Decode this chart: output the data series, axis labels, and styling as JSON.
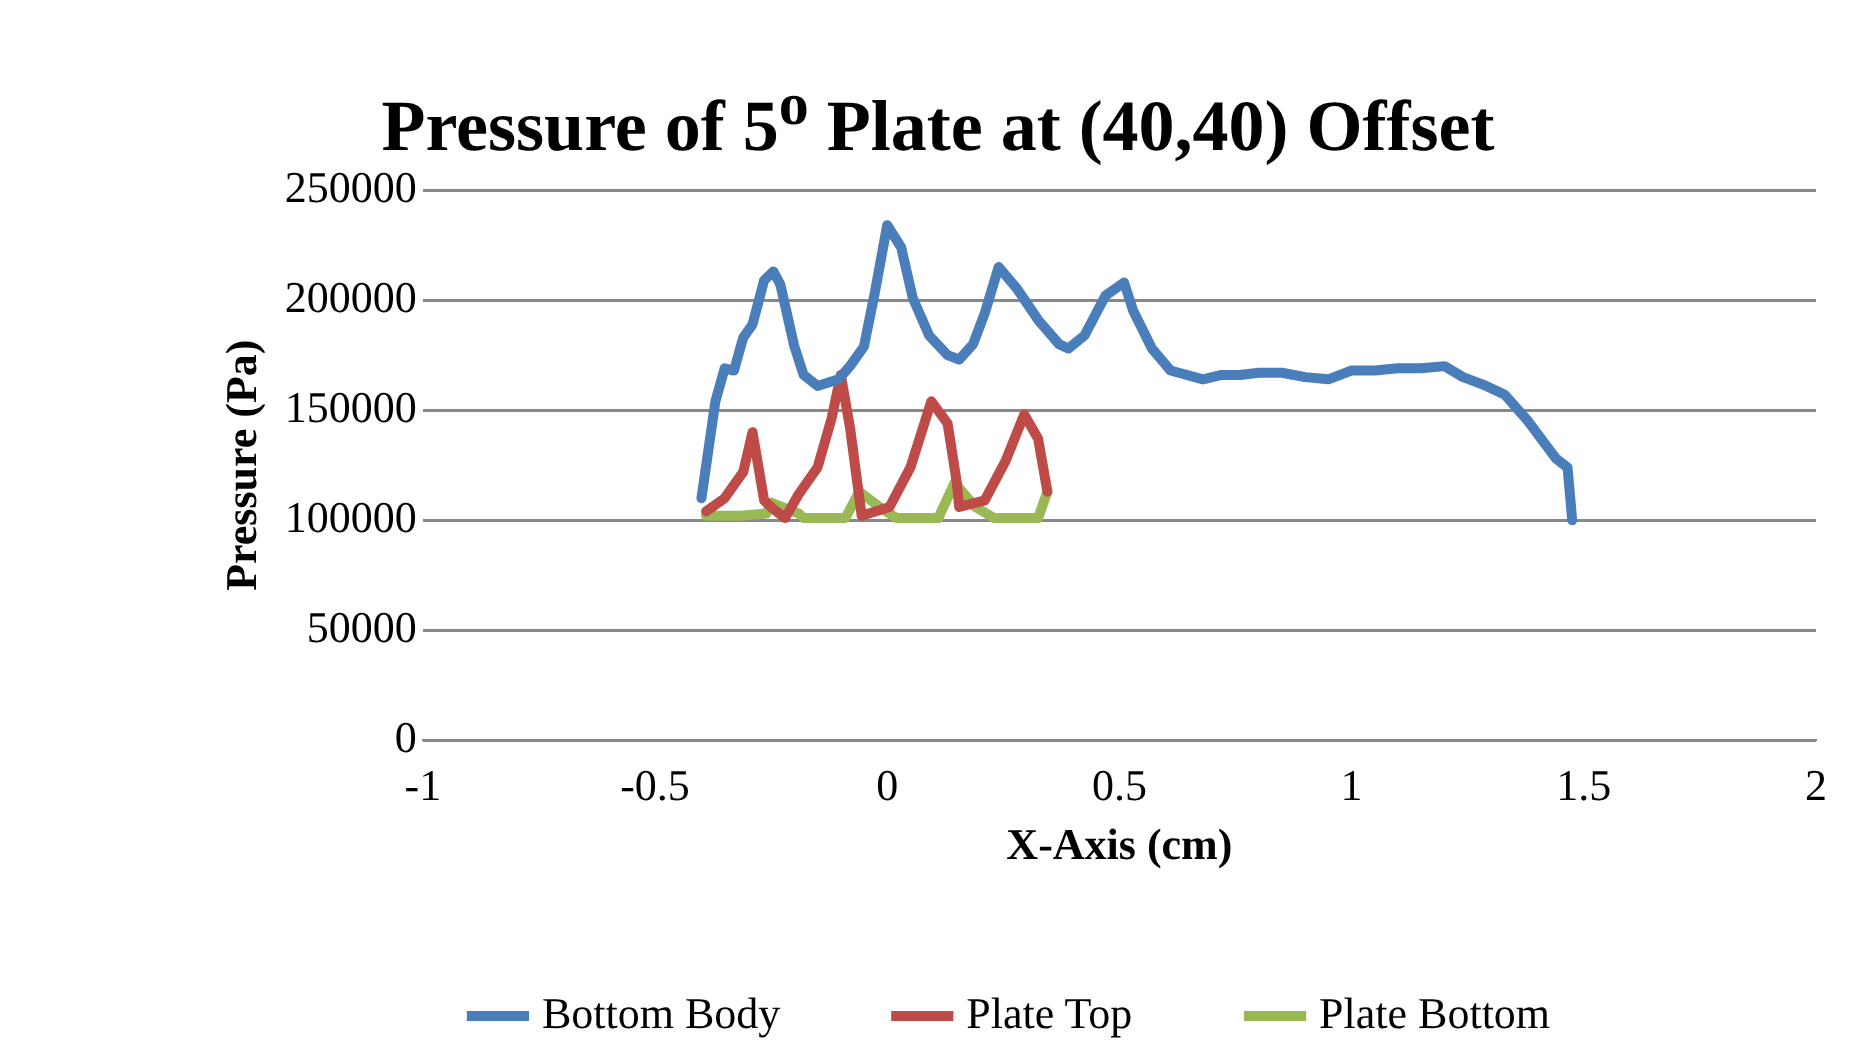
{
  "chart_data": {
    "type": "line",
    "title": "Pressure of 5$^{o}$ Plate at (40,40) Offset",
    "xlabel": "X-Axis (cm)",
    "ylabel": "Pressure (Pa)",
    "xlim": [
      -1,
      2
    ],
    "xticks": [
      -1,
      -0.5,
      0,
      0.5,
      1,
      1.5,
      2
    ],
    "ylim": [
      0,
      250000
    ],
    "yticks": [
      0,
      50000,
      100000,
      150000,
      200000,
      250000
    ],
    "grid": "y",
    "legend": "bottom",
    "marker": "none",
    "line_style": "solid",
    "series": [
      {
        "name": "Bottom Body",
        "color": "#4a7ebb",
        "x": [
          -0.4,
          -0.37,
          -0.35,
          -0.33,
          -0.31,
          -0.29,
          -0.265,
          -0.245,
          -0.23,
          -0.2,
          -0.18,
          -0.15,
          -0.105,
          -0.08,
          -0.05,
          -0.027,
          0,
          0.03,
          0.055,
          0.09,
          0.13,
          0.155,
          0.185,
          0.21,
          0.24,
          0.28,
          0.325,
          0.37,
          0.39,
          0.425,
          0.45,
          0.47,
          0.51,
          0.53,
          0.57,
          0.61,
          0.68,
          0.72,
          0.76,
          0.8,
          0.85,
          0.9,
          0.95,
          1.0,
          1.05,
          1.1,
          1.15,
          1.2,
          1.24,
          1.29,
          1.33,
          1.38,
          1.44,
          1.465,
          1.475
        ],
        "values": [
          110000,
          154000,
          169000,
          168000,
          183000,
          189000,
          209000,
          213000,
          207000,
          179000,
          166000,
          161000,
          164000,
          170000,
          179000,
          203000,
          234000,
          224000,
          201000,
          184000,
          175000,
          173000,
          180000,
          194000,
          215000,
          205000,
          191000,
          180000,
          178000,
          184000,
          194000,
          202000,
          208000,
          195000,
          178000,
          168000,
          164000,
          166000,
          166000,
          167000,
          167000,
          165000,
          164000,
          168000,
          168000,
          169000,
          169000,
          170000,
          165000,
          161000,
          157000,
          145000,
          128000,
          124000,
          100000
        ]
      },
      {
        "name": "Plate Top",
        "color": "#be4b48",
        "x": [
          -0.39,
          -0.35,
          -0.31,
          -0.29,
          -0.265,
          -0.25,
          -0.22,
          -0.19,
          -0.15,
          -0.12,
          -0.1,
          -0.08,
          -0.055,
          0.005,
          0.05,
          0.095,
          0.13,
          0.15,
          0.155,
          0.21,
          0.255,
          0.295,
          0.325,
          0.345
        ],
        "values": [
          104000,
          110000,
          122000,
          140000,
          109000,
          106000,
          101000,
          112000,
          124000,
          146000,
          166000,
          142000,
          102000,
          106000,
          124000,
          154000,
          144000,
          117000,
          106000,
          109000,
          127000,
          148000,
          137000,
          113000
        ]
      },
      {
        "name": "Plate Bottom",
        "color": "#98b954",
        "x": [
          -0.39,
          -0.315,
          -0.26,
          -0.25,
          -0.19,
          -0.18,
          -0.09,
          -0.06,
          -0.01,
          0.02,
          0.11,
          0.145,
          0.19,
          0.23,
          0.325,
          0.345
        ],
        "values": [
          102000,
          102000,
          103000,
          108000,
          103000,
          101000,
          101000,
          113000,
          105000,
          101000,
          101000,
          117000,
          106000,
          101000,
          101000,
          113000
        ]
      }
    ]
  }
}
